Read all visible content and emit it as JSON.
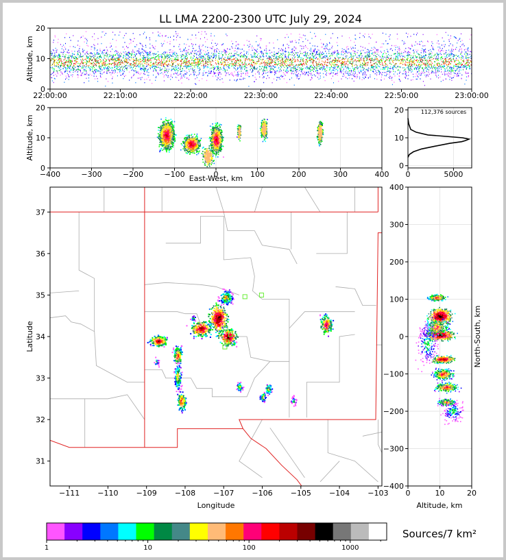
{
  "title": "LL LMA 2200-2300 UTC July 29, 2024",
  "panels": {
    "time_height": {
      "ylabel": "Altitude, km",
      "yticks": [
        "0",
        "10",
        "20"
      ],
      "xticks": [
        "22:00:00",
        "22:10:00",
        "22:20:00",
        "22:30:00",
        "22:40:00",
        "22:50:00",
        "23:00:00"
      ]
    },
    "ew_height": {
      "ylabel": "Altitude, km",
      "xlabel": "East-West, km",
      "yticks": [
        "0",
        "10",
        "20"
      ],
      "xticks": [
        "−400",
        "−300",
        "−200",
        "−100",
        "0",
        "100",
        "200",
        "300",
        "400"
      ]
    },
    "histogram": {
      "annotation": "112,376 sources",
      "yticks": [
        "0",
        "10",
        "20"
      ],
      "xticks": [
        "0",
        "5000"
      ]
    },
    "plan": {
      "ylabel": "Latitude",
      "xlabel": "Longitude",
      "yticks": [
        "31",
        "32",
        "33",
        "34",
        "35",
        "36",
        "37"
      ],
      "xticks": [
        "−111",
        "−110",
        "−109",
        "−108",
        "−107",
        "−106",
        "−105",
        "−104",
        "−103"
      ]
    },
    "ns_height": {
      "ylabel": "North-South, km",
      "xlabel": "Altitude, km",
      "yticks": [
        "−400",
        "−300",
        "−200",
        "−100",
        "0",
        "100",
        "200",
        "300",
        "400"
      ],
      "xticks": [
        "0",
        "10",
        "20"
      ]
    }
  },
  "colorbar": {
    "label": "Sources/7 km²",
    "ticks": [
      "1",
      "10",
      "100",
      "1000"
    ],
    "colors": [
      "#ff55ff",
      "#8800ff",
      "#0000ff",
      "#0077ff",
      "#00ffff",
      "#00ff00",
      "#008844",
      "#448888",
      "#ffff00",
      "#ffbb77",
      "#ff7700",
      "#ff0077",
      "#ff0000",
      "#bb0000",
      "#770000",
      "#000000",
      "#777777",
      "#bbbbbb",
      "#ffffff"
    ]
  },
  "chart_data": [
    {
      "type": "scatter",
      "title": "LL LMA 2200-2300 UTC July 29, 2024",
      "xlabel": "",
      "ylabel": "Altitude, km",
      "xlim": [
        "22:00:00",
        "23:00:00"
      ],
      "ylim": [
        0,
        20
      ],
      "note": "continuous VHF source density over the hour, altitude band ~4-18 km, peak density near 8-10 km"
    },
    {
      "type": "heatmap",
      "xlabel": "East-West, km",
      "ylabel": "Altitude, km",
      "xlim": [
        -400,
        400
      ],
      "ylim": [
        0,
        20
      ],
      "clusters_x_km": [
        -120,
        -60,
        0,
        55,
        115,
        250
      ]
    },
    {
      "type": "line",
      "xlabel": "",
      "ylabel": "",
      "xlim": [
        0,
        7000
      ],
      "ylim": [
        0,
        20
      ],
      "annotation": "112,376 sources",
      "x": [
        0,
        150,
        600,
        1500,
        3000,
        4600,
        5900,
        6300,
        6700,
        6000,
        4200,
        2200,
        900,
        300,
        80,
        0
      ],
      "y": [
        3,
        4,
        5,
        6,
        7,
        8,
        8.6,
        9,
        9.5,
        10,
        10.5,
        11,
        12,
        13,
        15,
        17
      ]
    },
    {
      "type": "heatmap",
      "xlabel": "Longitude",
      "ylabel": "Latitude",
      "xlim": [
        -111.5,
        -102.9
      ],
      "ylim": [
        30.4,
        37.6
      ],
      "source_clusters_lonlat": [
        [
          -108.7,
          33.9
        ],
        [
          -108.2,
          33.5
        ],
        [
          -108.15,
          33.0
        ],
        [
          -108.1,
          32.4
        ],
        [
          -107.6,
          34.2
        ],
        [
          -107.1,
          34.5
        ],
        [
          -106.95,
          34.95
        ],
        [
          -106.6,
          32.8
        ],
        [
          -105.8,
          32.75
        ],
        [
          -105.95,
          32.6
        ],
        [
          -104.35,
          34.3
        ],
        [
          -105.2,
          32.4
        ],
        [
          -106.9,
          34.0
        ]
      ]
    },
    {
      "type": "heatmap",
      "xlabel": "Altitude, km",
      "ylabel": "North-South, km",
      "xlim": [
        0,
        20
      ],
      "ylim": [
        -400,
        400
      ]
    }
  ]
}
